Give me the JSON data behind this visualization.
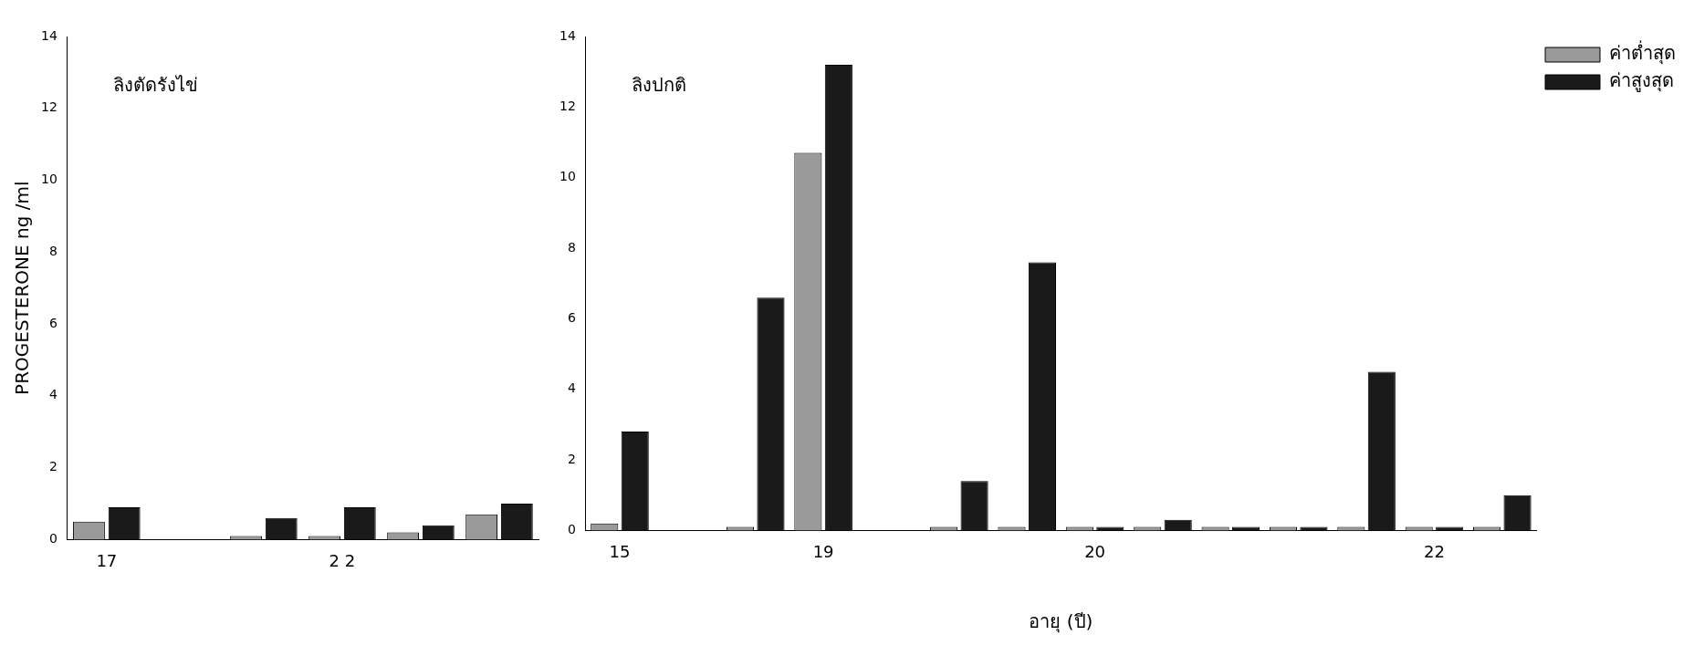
{
  "chart_data": [
    {
      "type": "bar",
      "title": "ลิงตัดรังไข่",
      "ylabel": "PROGESTERONE ng /ml",
      "categories": [
        "17",
        null,
        null,
        "2 2",
        null,
        null
      ],
      "series": [
        {
          "color": "#9a9a9a",
          "values": [
            0.5,
            0,
            0.1,
            0.1,
            0.2,
            0.7
          ]
        },
        {
          "color": "#1a1a1a",
          "values": [
            0.9,
            0,
            0.6,
            0.9,
            0.4,
            1.0
          ]
        }
      ],
      "ylim": [
        0,
        14
      ],
      "yticks": [
        0,
        2,
        4,
        6,
        8,
        10,
        12,
        14
      ],
      "legend": false
    },
    {
      "type": "bar",
      "title": "ลิงปกติ",
      "xlabel": "อายุ (ปี)",
      "categories": [
        "15",
        null,
        null,
        "19",
        null,
        null,
        null,
        "20",
        null,
        null,
        null,
        null,
        "22",
        null
      ],
      "series": [
        {
          "name": "ค่าต่ำสุด",
          "color": "#9a9a9a",
          "values": [
            0.2,
            0,
            0.1,
            10.7,
            0,
            0.1,
            0.1,
            0.1,
            0.1,
            0.1,
            0.1,
            0.1,
            0.1,
            0.1
          ]
        },
        {
          "name": "ค่าสูงสุด",
          "color": "#1a1a1a",
          "values": [
            2.8,
            0,
            6.6,
            13.2,
            0,
            1.4,
            7.6,
            0.1,
            0.3,
            0.1,
            0.1,
            4.5,
            0.1,
            1.0
          ]
        }
      ],
      "ylim": [
        0,
        14
      ],
      "yticks": [
        0,
        2,
        4,
        6,
        8,
        10,
        12,
        14
      ],
      "legend": "top right"
    }
  ]
}
